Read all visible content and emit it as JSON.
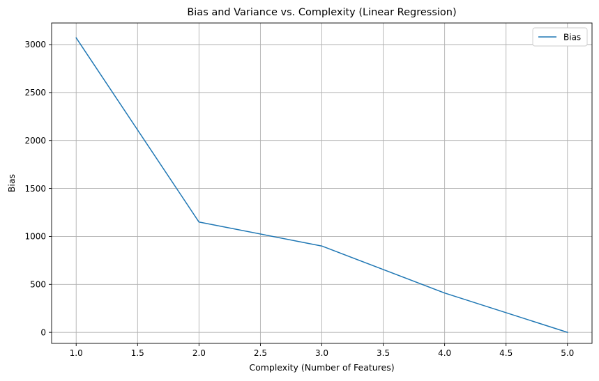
{
  "chart_data": {
    "type": "line",
    "title": "Bias and Variance vs. Complexity (Linear Regression)",
    "xlabel": "Complexity (Number of Features)",
    "ylabel": "Bias",
    "xlim": [
      0.8,
      5.2
    ],
    "ylim": [
      -115,
      3225
    ],
    "xticks": [
      1.0,
      1.5,
      2.0,
      2.5,
      3.0,
      3.5,
      4.0,
      4.5,
      5.0
    ],
    "xtick_labels": [
      "1.0",
      "1.5",
      "2.0",
      "2.5",
      "3.0",
      "3.5",
      "4.0",
      "4.5",
      "5.0"
    ],
    "yticks": [
      0,
      500,
      1000,
      1500,
      2000,
      2500,
      3000
    ],
    "ytick_labels": [
      "0",
      "500",
      "1000",
      "1500",
      "2000",
      "2500",
      "3000"
    ],
    "grid": true,
    "legend_position": "top-right",
    "series": [
      {
        "name": "Bias",
        "color": "#1f77b4",
        "x": [
          1,
          2,
          3,
          4,
          5
        ],
        "values": [
          3070,
          1150,
          900,
          410,
          0
        ]
      }
    ]
  }
}
